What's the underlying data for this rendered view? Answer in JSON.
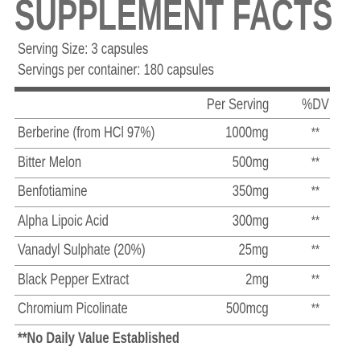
{
  "title": "SUPPLEMENT FACTS",
  "serving_size": "Serving Size: 3 capsules",
  "servings_per_container": "Servings per container: 180 capsules",
  "table": {
    "columns": [
      "Per Serving",
      "%DV"
    ],
    "rows": [
      [
        "Berberine (from HCl 97%)",
        "1000mg",
        "**"
      ],
      [
        "Bitter Melon",
        "500mg",
        "**"
      ],
      [
        "Benfotiamine",
        "350mg",
        "**"
      ],
      [
        "Alpha Lipoic Acid",
        "300mg",
        "**"
      ],
      [
        "Vanadyl Sulphate (20%)",
        "25mg",
        "**"
      ],
      [
        "Black Pepper Extract",
        "2mg",
        "**"
      ],
      [
        "Chromium Picolinate",
        "500mcg",
        "**"
      ]
    ]
  },
  "footnote": "**No Daily Value Established"
}
